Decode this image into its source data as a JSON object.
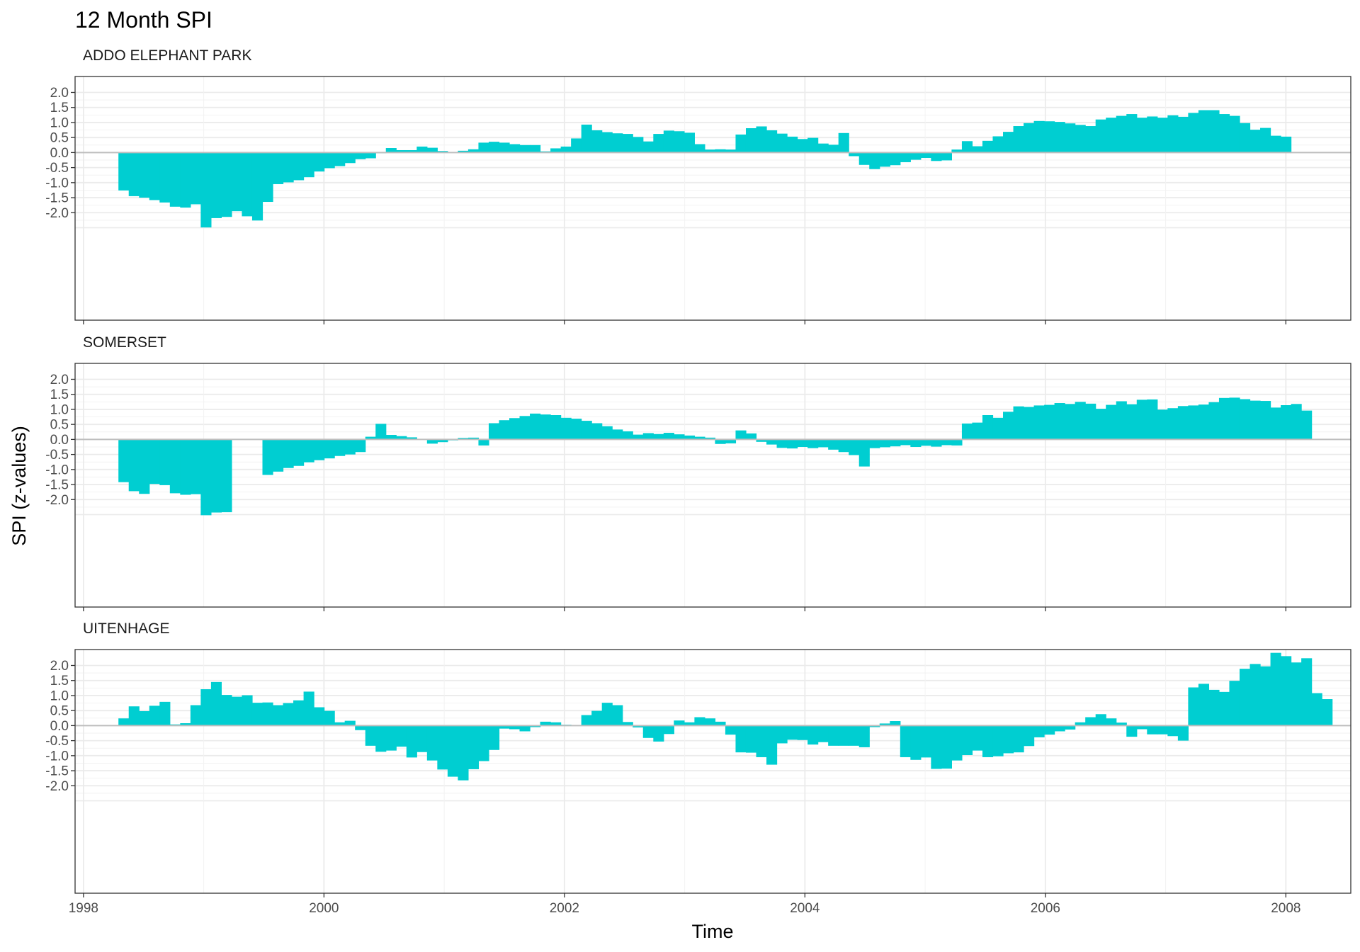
{
  "chart_data": {
    "type": "bar",
    "title": "12 Month SPI",
    "xlabel": "Time",
    "ylabel": "SPI (z-values)",
    "x_ticks": [
      "1998",
      "2000",
      "2002",
      "2004",
      "2006",
      "2008"
    ],
    "y_ticks": [
      "2.0",
      "1.5",
      "1.0",
      "0.5",
      "0.0",
      "-0.5",
      "-1.0",
      "-1.5",
      "-2.0"
    ],
    "ylim": [
      -2.7,
      2.2
    ],
    "bar_color": "#00CED1",
    "zero_line_color": "#bebebe",
    "grid": true,
    "x_start": "1998-05",
    "x_end": "2008-01",
    "panels": [
      {
        "name": "ADDO ELEPHANT PARK",
        "values": [
          -1.26,
          -1.45,
          -1.5,
          -1.58,
          -1.66,
          -1.8,
          -1.83,
          -1.72,
          -2.49,
          -2.18,
          -2.14,
          -1.95,
          -2.12,
          -2.26,
          -1.64,
          -1.05,
          -0.99,
          -0.92,
          -0.82,
          -0.63,
          -0.52,
          -0.45,
          -0.35,
          -0.22,
          -0.19,
          -0.02,
          0.15,
          0.08,
          0.08,
          0.2,
          0.16,
          0.05,
          0.02,
          0.06,
          0.11,
          0.33,
          0.36,
          0.33,
          0.28,
          0.25,
          0.25,
          0.04,
          0.14,
          0.2,
          0.47,
          0.93,
          0.74,
          0.68,
          0.64,
          0.62,
          0.52,
          0.37,
          0.62,
          0.73,
          0.71,
          0.66,
          0.28,
          0.1,
          0.11,
          0.1,
          0.6,
          0.81,
          0.87,
          0.74,
          0.63,
          0.53,
          0.45,
          0.49,
          0.3,
          0.26,
          0.65,
          -0.12,
          -0.41,
          -0.55,
          -0.47,
          -0.42,
          -0.32,
          -0.24,
          -0.18,
          -0.28,
          -0.26,
          0.1,
          0.38,
          0.21,
          0.39,
          0.54,
          0.69,
          0.88,
          0.98,
          1.05,
          1.04,
          1.02,
          0.97,
          0.92,
          0.88,
          1.1,
          1.16,
          1.22,
          1.28,
          1.16,
          1.2,
          1.16,
          1.24,
          1.19,
          1.32,
          1.41,
          1.41,
          1.28,
          1.22,
          0.98,
          0.76,
          0.82,
          0.56,
          0.53
        ]
      },
      {
        "name": "SOMERSET",
        "values": [
          -1.42,
          -1.72,
          -1.81,
          -1.48,
          -1.52,
          -1.79,
          -1.84,
          -1.82,
          -2.52,
          -2.43,
          -2.42,
          null,
          null,
          null,
          -1.18,
          -1.07,
          -0.95,
          -0.88,
          -0.76,
          -0.69,
          -0.63,
          -0.55,
          -0.5,
          -0.42,
          0.09,
          0.52,
          0.15,
          0.11,
          0.07,
          0.01,
          -0.14,
          -0.09,
          -0.03,
          0.05,
          0.06,
          -0.2,
          0.54,
          0.64,
          0.71,
          0.78,
          0.86,
          0.83,
          0.81,
          0.72,
          0.69,
          0.62,
          0.54,
          0.44,
          0.33,
          0.27,
          0.16,
          0.21,
          0.18,
          0.22,
          0.17,
          0.13,
          0.09,
          0.06,
          -0.15,
          -0.13,
          0.3,
          0.2,
          -0.08,
          -0.17,
          -0.28,
          -0.3,
          -0.25,
          -0.29,
          -0.26,
          -0.34,
          -0.42,
          -0.52,
          -0.9,
          -0.29,
          -0.26,
          -0.23,
          -0.19,
          -0.25,
          -0.21,
          -0.24,
          -0.19,
          -0.2,
          0.53,
          0.56,
          0.81,
          0.72,
          0.92,
          1.1,
          1.08,
          1.13,
          1.15,
          1.21,
          1.18,
          1.25,
          1.19,
          1.02,
          1.15,
          1.27,
          1.17,
          1.32,
          1.33,
          0.99,
          1.04,
          1.11,
          1.13,
          1.16,
          1.24,
          1.38,
          1.39,
          1.34,
          1.29,
          1.28,
          1.06,
          1.14,
          1.18,
          0.96
        ]
      },
      {
        "name": "UITENHAGE",
        "values": [
          0.24,
          0.64,
          0.48,
          0.66,
          0.79,
          0.04,
          0.08,
          0.68,
          1.21,
          1.45,
          1.02,
          0.96,
          1.01,
          0.76,
          0.77,
          0.68,
          0.75,
          0.84,
          1.13,
          0.61,
          0.49,
          0.11,
          0.16,
          -0.15,
          -0.67,
          -0.87,
          -0.83,
          -0.7,
          -1.06,
          -0.88,
          -1.16,
          -1.46,
          -1.7,
          -1.82,
          -1.45,
          -1.18,
          -0.81,
          -0.1,
          -0.12,
          -0.19,
          -0.05,
          0.13,
          0.11,
          0.03,
          0.01,
          0.35,
          0.49,
          0.76,
          0.68,
          0.12,
          -0.06,
          -0.41,
          -0.53,
          -0.28,
          0.17,
          0.11,
          0.28,
          0.24,
          0.13,
          -0.3,
          -0.89,
          -0.9,
          -1.05,
          -1.3,
          -0.59,
          -0.47,
          -0.48,
          -0.63,
          -0.55,
          -0.67,
          -0.67,
          -0.67,
          -0.72,
          -0.05,
          0.07,
          0.15,
          -1.05,
          -1.14,
          -1.06,
          -1.44,
          -1.43,
          -1.16,
          -0.98,
          -0.83,
          -1.05,
          -1.02,
          -0.92,
          -0.89,
          -0.68,
          -0.39,
          -0.3,
          -0.19,
          -0.13,
          0.11,
          0.28,
          0.38,
          0.24,
          0.1,
          -0.37,
          -0.12,
          -0.29,
          -0.29,
          -0.35,
          -0.5,
          1.27,
          1.39,
          1.19,
          1.12,
          1.49,
          1.89,
          2.05,
          1.97,
          2.42,
          2.31,
          2.1,
          2.24,
          1.08,
          0.88
        ]
      }
    ]
  }
}
